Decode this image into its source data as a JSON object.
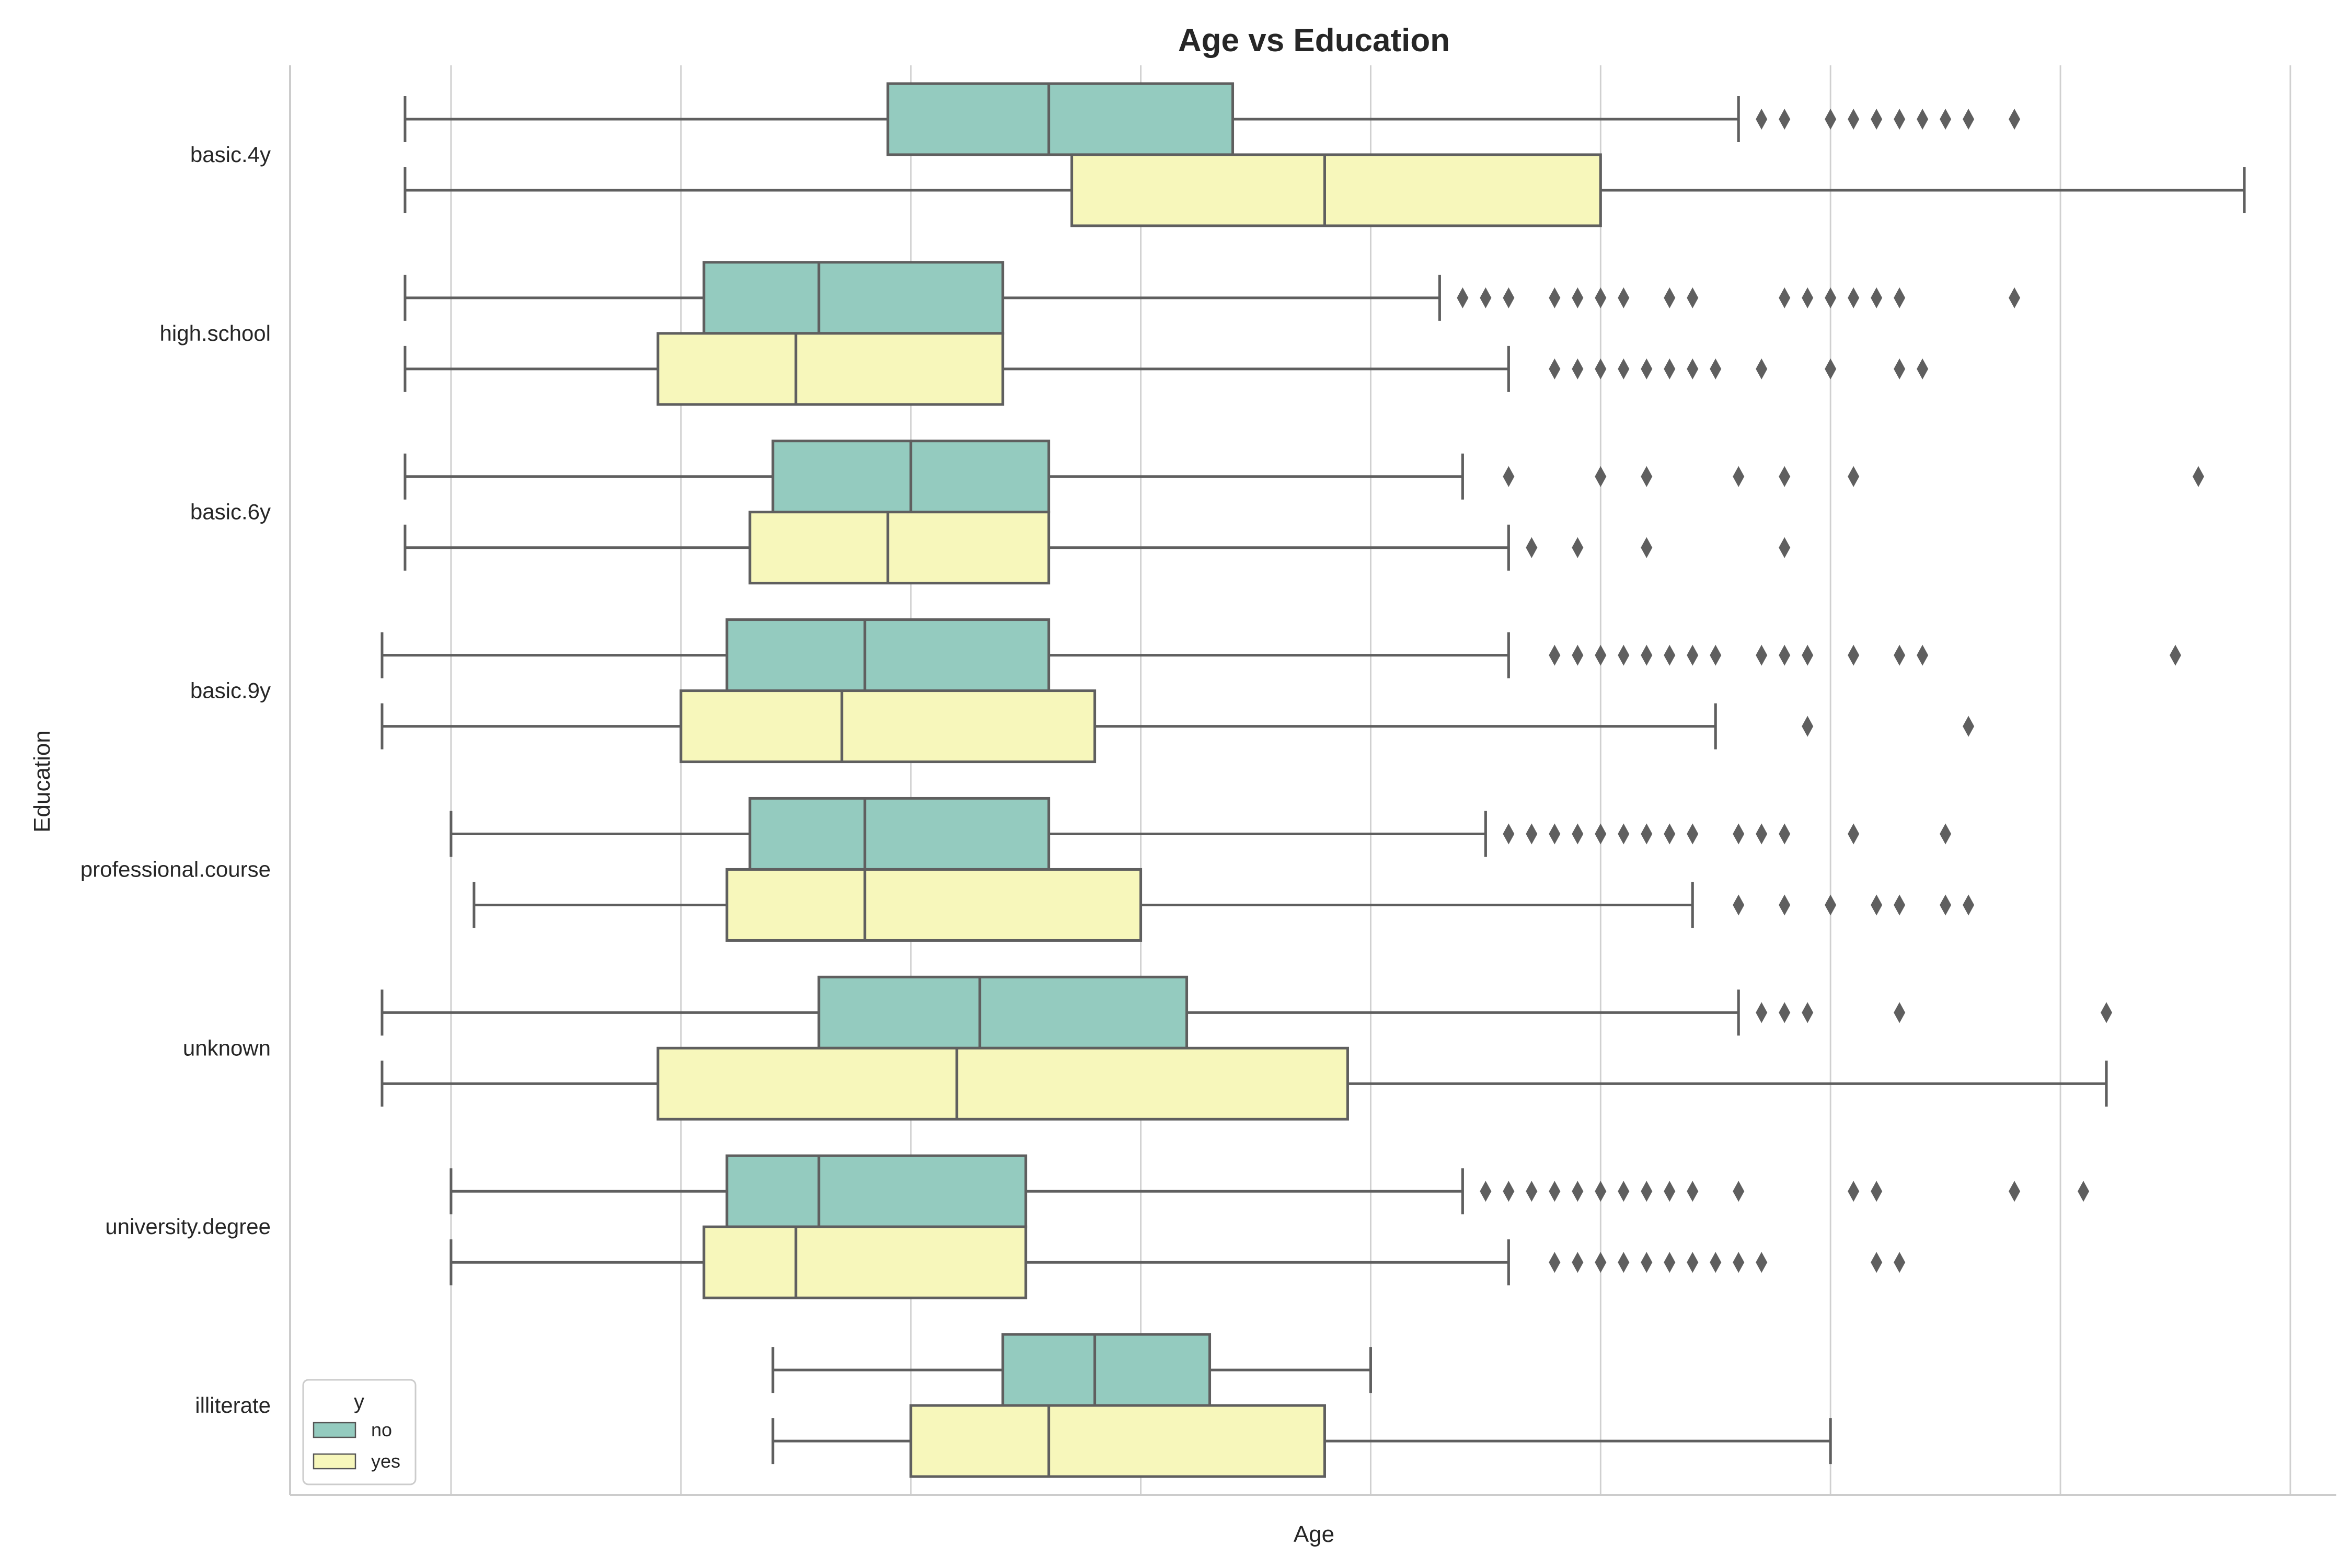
{
  "chart_data": {
    "type": "box",
    "orientation": "horizontal",
    "title": "Age vs Education",
    "xlabel": "Age",
    "ylabel": "Education",
    "xlim": [
      10,
      99
    ],
    "grid": "vertical",
    "grid_ticks": [
      17,
      27,
      37,
      47,
      57,
      67,
      77,
      87,
      97
    ],
    "categories": [
      "basic.4y",
      "high.school",
      "basic.6y",
      "basic.9y",
      "professional.course",
      "unknown",
      "university.degree",
      "illiterate"
    ],
    "legend": {
      "title": "y",
      "position": "lower-left",
      "entries": [
        {
          "label": "no",
          "color": "#94cbbf"
        },
        {
          "label": "yes",
          "color": "#f7f7bb"
        }
      ]
    },
    "series": [
      {
        "name": "no",
        "color": "#94cbbf",
        "boxes": [
          {
            "whislo": 15,
            "q1": 36,
            "med": 43,
            "q3": 51,
            "whishi": 73,
            "fliers": [
              74,
              75,
              77,
              78,
              79,
              80,
              81,
              82,
              83,
              85
            ]
          },
          {
            "whislo": 15,
            "q1": 28,
            "med": 33,
            "q3": 41,
            "whishi": 60,
            "fliers": [
              61,
              62,
              63,
              65,
              66,
              67,
              68,
              70,
              71,
              75,
              76,
              77,
              78,
              79,
              80,
              85
            ]
          },
          {
            "whislo": 15,
            "q1": 31,
            "med": 37,
            "q3": 43,
            "whishi": 61,
            "fliers": [
              63,
              67,
              69,
              73,
              75,
              78,
              93
            ]
          },
          {
            "whislo": 14,
            "q1": 29,
            "med": 35,
            "q3": 43,
            "whishi": 63,
            "fliers": [
              65,
              66,
              67,
              68,
              69,
              70,
              71,
              72,
              74,
              75,
              76,
              78,
              80,
              81,
              92
            ]
          },
          {
            "whislo": 17,
            "q1": 30,
            "med": 35,
            "q3": 43,
            "whishi": 62,
            "fliers": [
              63,
              64,
              65,
              66,
              67,
              68,
              69,
              70,
              71,
              73,
              74,
              75,
              78,
              82
            ]
          },
          {
            "whislo": 14,
            "q1": 33,
            "med": 40,
            "q3": 49,
            "whishi": 73,
            "fliers": [
              74,
              75,
              76,
              80,
              89
            ]
          },
          {
            "whislo": 17,
            "q1": 29,
            "med": 33,
            "q3": 42,
            "whishi": 61,
            "fliers": [
              62,
              63,
              64,
              65,
              66,
              67,
              68,
              69,
              70,
              71,
              73,
              78,
              79,
              85,
              88
            ]
          },
          {
            "whislo": 31,
            "q1": 41,
            "med": 45,
            "q3": 50,
            "whishi": 57,
            "fliers": []
          }
        ]
      },
      {
        "name": "yes",
        "color": "#f7f7bb",
        "boxes": [
          {
            "whislo": 15,
            "q1": 44,
            "med": 55,
            "q3": 67,
            "whishi": 95,
            "fliers": []
          },
          {
            "whislo": 15,
            "q1": 26,
            "med": 32,
            "q3": 41,
            "whishi": 63,
            "fliers": [
              65,
              66,
              67,
              68,
              69,
              70,
              71,
              72,
              74,
              77,
              80,
              81
            ]
          },
          {
            "whislo": 15,
            "q1": 30,
            "med": 36,
            "q3": 43,
            "whishi": 63,
            "fliers": [
              64,
              66,
              69,
              75
            ]
          },
          {
            "whislo": 14,
            "q1": 27,
            "med": 34,
            "q3": 45,
            "whishi": 72,
            "fliers": [
              76,
              83
            ]
          },
          {
            "whislo": 18,
            "q1": 29,
            "med": 35,
            "q3": 47,
            "whishi": 71,
            "fliers": [
              73,
              75,
              77,
              79,
              80,
              82,
              83
            ]
          },
          {
            "whislo": 14,
            "q1": 26,
            "med": 39,
            "q3": 56,
            "whishi": 89,
            "fliers": []
          },
          {
            "whislo": 17,
            "q1": 28,
            "med": 32,
            "q3": 42,
            "whishi": 63,
            "fliers": [
              65,
              66,
              67,
              68,
              69,
              70,
              71,
              72,
              73,
              74,
              79,
              80
            ]
          },
          {
            "whislo": 31,
            "q1": 37,
            "med": 43,
            "q3": 55,
            "whishi": 77,
            "fliers": []
          }
        ]
      }
    ]
  }
}
